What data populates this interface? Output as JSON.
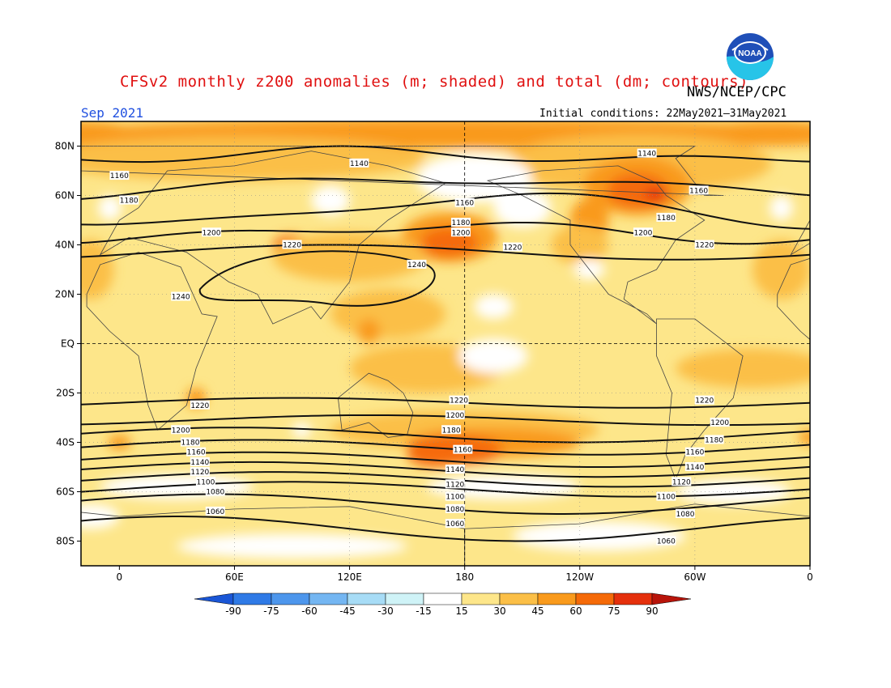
{
  "title": "CFSv2 monthly z200 anomalies (m; shaded) and total (dm; contours)",
  "agency": "NWS/NCEP/CPC",
  "valid_month": "Sep 2021",
  "initial_conditions": "Initial conditions: 22May2021–31May2021",
  "logo_text": "NOAA",
  "colors": {
    "c_lt15": "#ffffff",
    "c_15_30": "#fde68a",
    "c_30_45": "#fbbf47",
    "c_45_60": "#f99a1c",
    "c_60_75": "#f56a08",
    "c_75_90": "#e5300c",
    "c_gt90": "#b8140a",
    "land_outline": "#444444",
    "contour": "#111111"
  },
  "map": {
    "lat_labels": [
      "80N",
      "60N",
      "40N",
      "20N",
      "EQ",
      "20S",
      "40S",
      "60S",
      "80S"
    ],
    "lon_labels": [
      "0",
      "60E",
      "120E",
      "180",
      "120W",
      "60W",
      "0"
    ]
  },
  "colorbar": {
    "ticks": [
      "-90",
      "-75",
      "-60",
      "-45",
      "-30",
      "-15",
      "15",
      "30",
      "45",
      "60",
      "75",
      "90"
    ],
    "colors": [
      "#1a56d6",
      "#2f7ae6",
      "#4d96ec",
      "#74b6f2",
      "#a7dcf6",
      "#cff3f7",
      "#ffffff",
      "#fde68a",
      "#fbbf47",
      "#f99a1c",
      "#f56a08",
      "#e5300c",
      "#b8140a"
    ]
  },
  "contour_labels": [
    {
      "lon": 0,
      "lat": 68,
      "text": "1160"
    },
    {
      "lon": 5,
      "lat": 58,
      "text": "1180"
    },
    {
      "lon": 48,
      "lat": 45,
      "text": "1200"
    },
    {
      "lon": 90,
      "lat": 40,
      "text": "1220"
    },
    {
      "lon": 32,
      "lat": 19,
      "text": "1240"
    },
    {
      "lon": 155,
      "lat": 32,
      "text": "1240"
    },
    {
      "lon": 125,
      "lat": 73,
      "text": "1140"
    },
    {
      "lon": 180,
      "lat": 57,
      "text": "1160"
    },
    {
      "lon": 178,
      "lat": 49,
      "text": "1180"
    },
    {
      "lon": 178,
      "lat": 45,
      "text": "1200"
    },
    {
      "lon": 205,
      "lat": 39,
      "text": "1220"
    },
    {
      "lon": 275,
      "lat": 77,
      "text": "1140"
    },
    {
      "lon": 302,
      "lat": 62,
      "text": "1160"
    },
    {
      "lon": 285,
      "lat": 51,
      "text": "1180"
    },
    {
      "lon": 273,
      "lat": 45,
      "text": "1200"
    },
    {
      "lon": 305,
      "lat": 40,
      "text": "1220"
    },
    {
      "lon": 42,
      "lat": -25,
      "text": "1220"
    },
    {
      "lon": 32,
      "lat": -35,
      "text": "1200"
    },
    {
      "lon": 37,
      "lat": -40,
      "text": "1180"
    },
    {
      "lon": 40,
      "lat": -44,
      "text": "1160"
    },
    {
      "lon": 42,
      "lat": -48,
      "text": "1140"
    },
    {
      "lon": 42,
      "lat": -52,
      "text": "1120"
    },
    {
      "lon": 45,
      "lat": -56,
      "text": "1100"
    },
    {
      "lon": 50,
      "lat": -60,
      "text": "1080"
    },
    {
      "lon": 50,
      "lat": -68,
      "text": "1060"
    },
    {
      "lon": 177,
      "lat": -23,
      "text": "1220"
    },
    {
      "lon": 175,
      "lat": -29,
      "text": "1200"
    },
    {
      "lon": 173,
      "lat": -35,
      "text": "1180"
    },
    {
      "lon": 179,
      "lat": -43,
      "text": "1160"
    },
    {
      "lon": 175,
      "lat": -51,
      "text": "1140"
    },
    {
      "lon": 175,
      "lat": -57,
      "text": "1120"
    },
    {
      "lon": 175,
      "lat": -62,
      "text": "1100"
    },
    {
      "lon": 175,
      "lat": -67,
      "text": "1080"
    },
    {
      "lon": 175,
      "lat": -73,
      "text": "1060"
    },
    {
      "lon": 305,
      "lat": -23,
      "text": "1220"
    },
    {
      "lon": 313,
      "lat": -32,
      "text": "1200"
    },
    {
      "lon": 310,
      "lat": -39,
      "text": "1180"
    },
    {
      "lon": 300,
      "lat": -44,
      "text": "1160"
    },
    {
      "lon": 300,
      "lat": -50,
      "text": "1140"
    },
    {
      "lon": 293,
      "lat": -56,
      "text": "1120"
    },
    {
      "lon": 285,
      "lat": -62,
      "text": "1100"
    },
    {
      "lon": 295,
      "lat": -69,
      "text": "1080"
    },
    {
      "lon": 285,
      "lat": -80,
      "text": "1060"
    }
  ]
}
